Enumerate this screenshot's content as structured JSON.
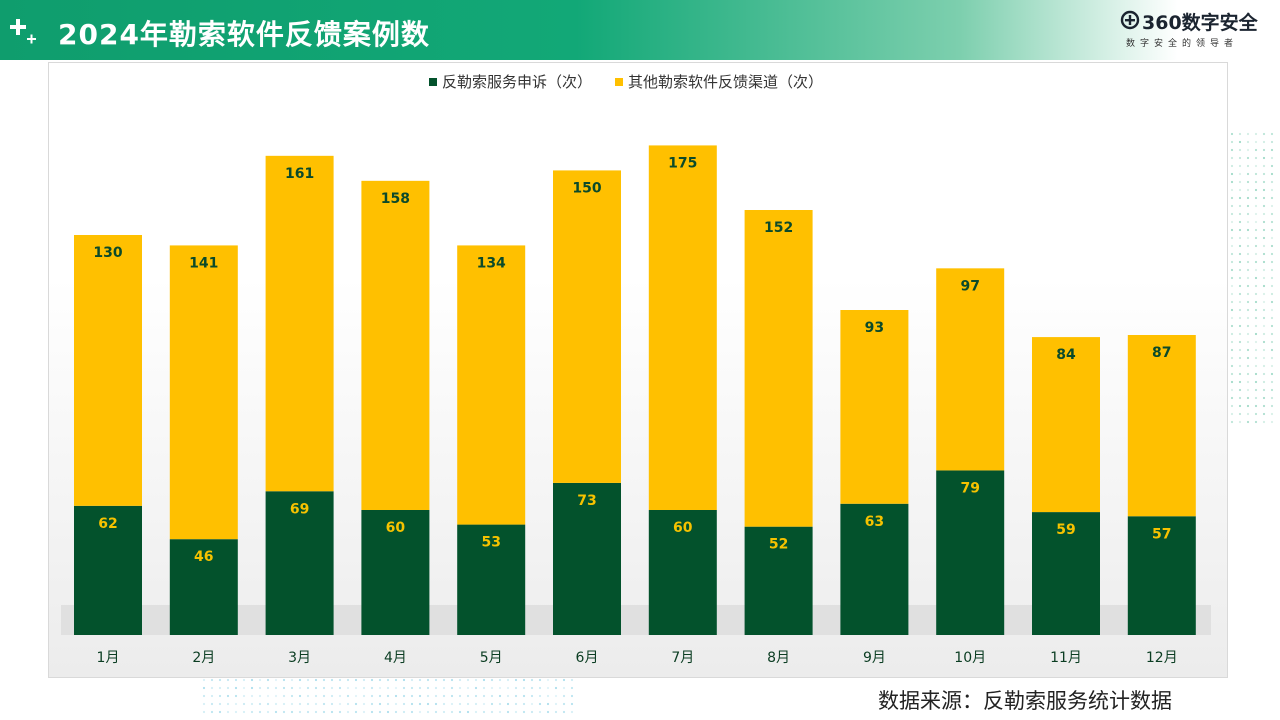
{
  "header": {
    "title": "2024年勒索软件反馈案例数",
    "logo_name": "360数字安全",
    "logo_slogan": "数字安全的领导者",
    "color": "#0f9d6d"
  },
  "icons": {
    "plus": "plus-sparkle-icon",
    "logo": "logo-mark-icon"
  },
  "chart_data": {
    "type": "bar",
    "stacked": true,
    "categories": [
      "1月",
      "2月",
      "3月",
      "4月",
      "5月",
      "6月",
      "7月",
      "8月",
      "9月",
      "10月",
      "11月",
      "12月"
    ],
    "series": [
      {
        "name": "反勒索服务申诉（次）",
        "values": [
          62,
          46,
          69,
          60,
          53,
          73,
          60,
          52,
          63,
          79,
          59,
          57
        ],
        "color": "#03522c",
        "label_color": "#f6c200"
      },
      {
        "name": "其他勒索软件反馈渠道（次）",
        "values": [
          130,
          141,
          161,
          158,
          134,
          150,
          175,
          152,
          93,
          97,
          84,
          87
        ],
        "color": "#ffc000",
        "label_color": "#0b4a2a"
      }
    ],
    "title": "",
    "xlabel": "",
    "ylabel": "",
    "ylim": [
      0,
      240
    ],
    "grid": false,
    "legend_position": "top-center"
  },
  "source": "数据来源：反勒索服务统计数据"
}
